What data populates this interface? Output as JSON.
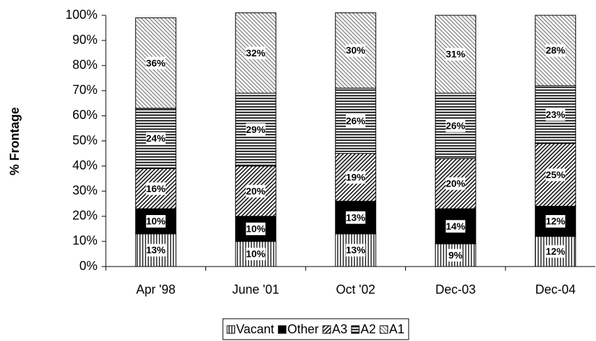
{
  "chart_data": {
    "type": "stacked_bar",
    "y_label": "% Frontage",
    "categories": [
      "Apr '98",
      "June '01",
      "Oct '02",
      "Dec-03",
      "Dec-04"
    ],
    "series": [
      {
        "name": "Vacant",
        "color": "#000000",
        "pattern": "vertical",
        "values": [
          13,
          10,
          13,
          9,
          12
        ],
        "value_labels": [
          "13%",
          "10%",
          "13%",
          "9%",
          "12%"
        ]
      },
      {
        "name": "Other",
        "color": "#000000",
        "values": [
          10,
          10,
          13,
          14,
          12
        ],
        "value_labels": [
          "10%",
          "10%",
          "13%",
          "14%",
          "12%"
        ]
      },
      {
        "name": "A3",
        "color": "#000000",
        "pattern": "diag-down",
        "values": [
          16,
          20,
          19,
          20,
          25
        ],
        "value_labels": [
          "16%",
          "20%",
          "19%",
          "20%",
          "25%"
        ]
      },
      {
        "name": "A2",
        "color": "#000000",
        "pattern": "horizontal",
        "values": [
          24,
          29,
          26,
          26,
          23
        ],
        "value_labels": [
          "24%",
          "29%",
          "26%",
          "26%",
          "23%"
        ]
      },
      {
        "name": "A1",
        "color": "#808080",
        "pattern": "diag-up",
        "values": [
          36,
          32,
          30,
          31,
          28
        ],
        "value_labels": [
          "36%",
          "32%",
          "30%",
          "31%",
          "28%"
        ]
      }
    ],
    "ylim": [
      0,
      100
    ],
    "yticks": [
      {
        "value": 0,
        "label": "0%"
      },
      {
        "value": 10,
        "label": "10%"
      },
      {
        "value": 20,
        "label": "20%"
      },
      {
        "value": 30,
        "label": "30%"
      },
      {
        "value": 40,
        "label": "40%"
      },
      {
        "value": 50,
        "label": "50%"
      },
      {
        "value": 60,
        "label": "60%"
      },
      {
        "value": 70,
        "label": "70%"
      },
      {
        "value": 80,
        "label": "80%"
      },
      {
        "value": 90,
        "label": "90%"
      },
      {
        "value": 100,
        "label": "100%"
      }
    ],
    "legend": "bottom"
  }
}
